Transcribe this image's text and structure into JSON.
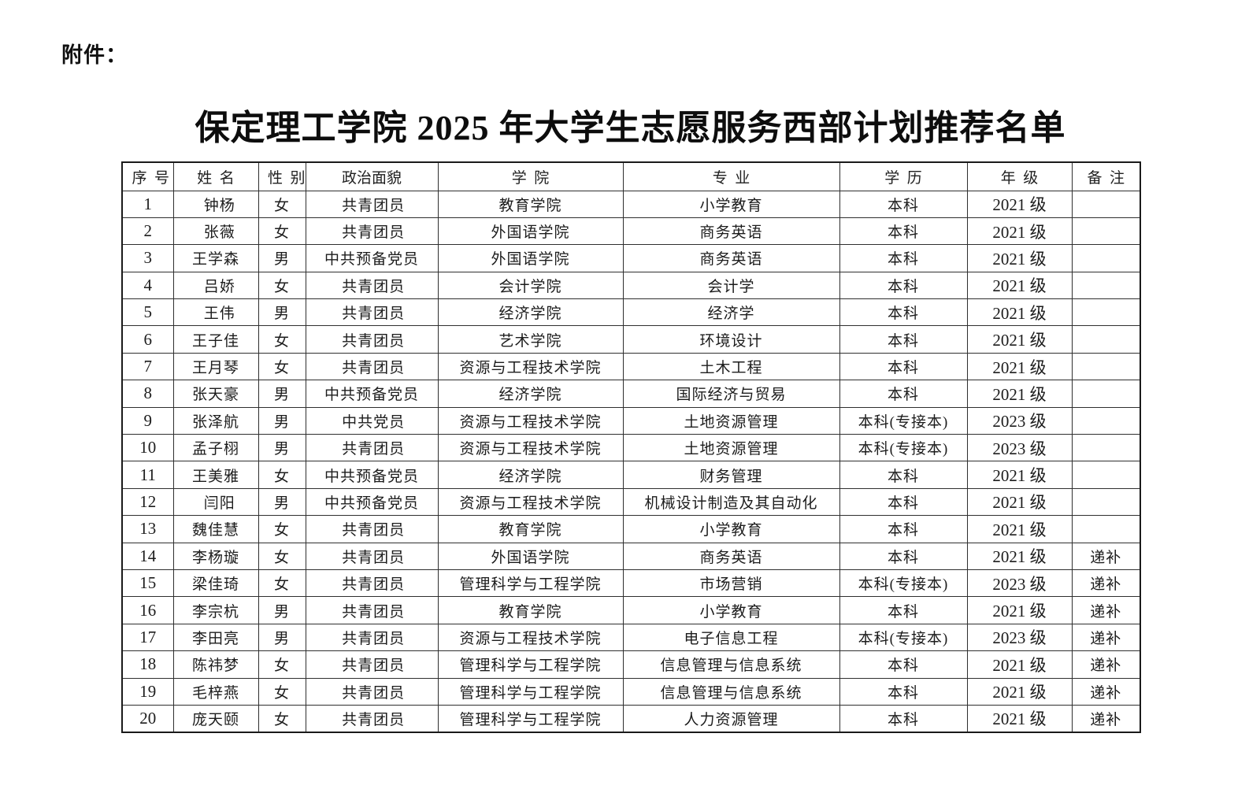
{
  "page": {
    "attachment_label": "附件：",
    "title": "保定理工学院 2025 年大学生志愿服务西部计划推荐名单"
  },
  "table": {
    "headers": [
      "序号",
      "姓名",
      "性别",
      "政治面貌",
      "学院",
      "专业",
      "学历",
      "年级",
      "备注"
    ],
    "rows": [
      [
        "1",
        "钟杨",
        "女",
        "共青团员",
        "教育学院",
        "小学教育",
        "本科",
        "2021 级",
        ""
      ],
      [
        "2",
        "张薇",
        "女",
        "共青团员",
        "外国语学院",
        "商务英语",
        "本科",
        "2021 级",
        ""
      ],
      [
        "3",
        "王学森",
        "男",
        "中共预备党员",
        "外国语学院",
        "商务英语",
        "本科",
        "2021 级",
        ""
      ],
      [
        "4",
        "吕娇",
        "女",
        "共青团员",
        "会计学院",
        "会计学",
        "本科",
        "2021 级",
        ""
      ],
      [
        "5",
        "王伟",
        "男",
        "共青团员",
        "经济学院",
        "经济学",
        "本科",
        "2021 级",
        ""
      ],
      [
        "6",
        "王子佳",
        "女",
        "共青团员",
        "艺术学院",
        "环境设计",
        "本科",
        "2021 级",
        ""
      ],
      [
        "7",
        "王月琴",
        "女",
        "共青团员",
        "资源与工程技术学院",
        "土木工程",
        "本科",
        "2021 级",
        ""
      ],
      [
        "8",
        "张天豪",
        "男",
        "中共预备党员",
        "经济学院",
        "国际经济与贸易",
        "本科",
        "2021 级",
        ""
      ],
      [
        "9",
        "张泽航",
        "男",
        "中共党员",
        "资源与工程技术学院",
        "土地资源管理",
        "本科(专接本)",
        "2023 级",
        ""
      ],
      [
        "10",
        "孟子栩",
        "男",
        "共青团员",
        "资源与工程技术学院",
        "土地资源管理",
        "本科(专接本)",
        "2023 级",
        ""
      ],
      [
        "11",
        "王美雅",
        "女",
        "中共预备党员",
        "经济学院",
        "财务管理",
        "本科",
        "2021 级",
        ""
      ],
      [
        "12",
        "闫阳",
        "男",
        "中共预备党员",
        "资源与工程技术学院",
        "机械设计制造及其自动化",
        "本科",
        "2021 级",
        ""
      ],
      [
        "13",
        "魏佳慧",
        "女",
        "共青团员",
        "教育学院",
        "小学教育",
        "本科",
        "2021 级",
        ""
      ],
      [
        "14",
        "李杨璇",
        "女",
        "共青团员",
        "外国语学院",
        "商务英语",
        "本科",
        "2021 级",
        "递补"
      ],
      [
        "15",
        "梁佳琦",
        "女",
        "共青团员",
        "管理科学与工程学院",
        "市场营销",
        "本科(专接本)",
        "2023 级",
        "递补"
      ],
      [
        "16",
        "李宗杭",
        "男",
        "共青团员",
        "教育学院",
        "小学教育",
        "本科",
        "2021 级",
        "递补"
      ],
      [
        "17",
        "李田亮",
        "男",
        "共青团员",
        "资源与工程技术学院",
        "电子信息工程",
        "本科(专接本)",
        "2023 级",
        "递补"
      ],
      [
        "18",
        "陈祎梦",
        "女",
        "共青团员",
        "管理科学与工程学院",
        "信息管理与信息系统",
        "本科",
        "2021 级",
        "递补"
      ],
      [
        "19",
        "毛梓燕",
        "女",
        "共青团员",
        "管理科学与工程学院",
        "信息管理与信息系统",
        "本科",
        "2021 级",
        "递补"
      ],
      [
        "20",
        "庞天颐",
        "女",
        "共青团员",
        "管理科学与工程学院",
        "人力资源管理",
        "本科",
        "2021 级",
        "递补"
      ]
    ]
  }
}
